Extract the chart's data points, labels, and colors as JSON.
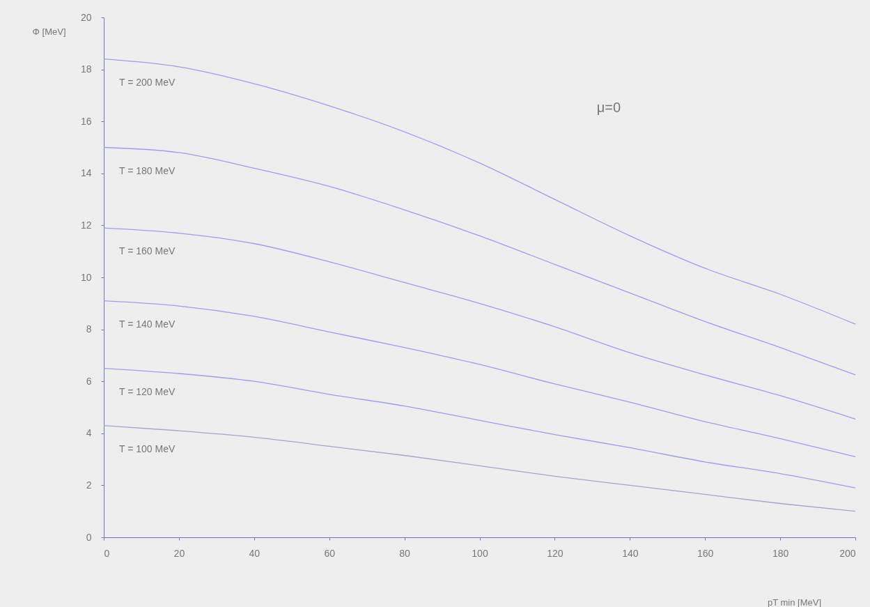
{
  "chart_data": {
    "type": "line",
    "xlabel": "pT min [MeV]",
    "ylabel": "Φ [MeV]",
    "x": [
      0,
      20,
      40,
      60,
      80,
      100,
      120,
      140,
      160,
      180,
      200
    ],
    "series": [
      {
        "name": "T = 200 MeV",
        "color": "#9c9cf0",
        "values": [
          18.4,
          18.1,
          17.45,
          16.6,
          15.6,
          14.4,
          13.0,
          11.6,
          10.35,
          9.35,
          8.2
        ]
      },
      {
        "name": "T = 180 MeV",
        "color": "#9c9cf0",
        "values": [
          15.0,
          14.8,
          14.2,
          13.5,
          12.6,
          11.6,
          10.5,
          9.4,
          8.3,
          7.3,
          6.25
        ]
      },
      {
        "name": "T = 160 MeV",
        "color": "#9c9cf0",
        "values": [
          11.9,
          11.7,
          11.3,
          10.6,
          9.8,
          9.0,
          8.1,
          7.1,
          6.25,
          5.45,
          4.55
        ]
      },
      {
        "name": "T = 140 MeV",
        "color": "#9c9cf0",
        "values": [
          9.1,
          8.9,
          8.5,
          7.9,
          7.3,
          6.65,
          5.9,
          5.2,
          4.45,
          3.8,
          3.1
        ]
      },
      {
        "name": "T = 120 MeV",
        "color": "#9c9cf0",
        "values": [
          6.5,
          6.3,
          6.0,
          5.5,
          5.05,
          4.5,
          3.95,
          3.45,
          2.9,
          2.45,
          1.9
        ]
      },
      {
        "name": "T = 100 MeV",
        "color": "#a4a4cc",
        "values": [
          4.3,
          4.1,
          3.85,
          3.5,
          3.15,
          2.75,
          2.35,
          2.0,
          1.65,
          1.3,
          1.0
        ]
      }
    ],
    "annotations": [
      "μ=0"
    ],
    "xlim": [
      0,
      200
    ],
    "xticks": [
      0,
      20,
      40,
      60,
      80,
      100,
      120,
      140,
      160,
      180,
      200
    ],
    "ylim": [
      0,
      20
    ],
    "yticks": [
      0,
      2,
      4,
      6,
      8,
      10,
      12,
      14,
      16,
      18,
      20
    ],
    "grid": false,
    "legend": false,
    "marker": "none",
    "line_style": "solid"
  }
}
